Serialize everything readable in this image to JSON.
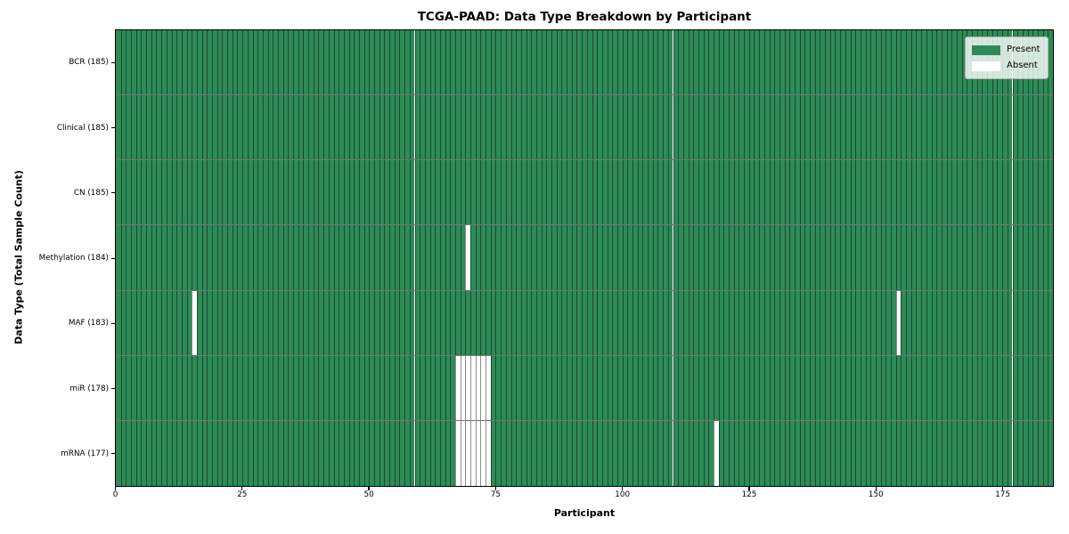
{
  "chart_data": {
    "type": "heatmap",
    "title": "TCGA-PAAD: Data Type Breakdown by Participant",
    "xlabel": "Participant",
    "ylabel": "Data Type (Total Sample Count)",
    "x_ticks": [
      0,
      25,
      50,
      75,
      100,
      125,
      150,
      175
    ],
    "x_range": [
      0,
      185
    ],
    "n_participants": 185,
    "grid": false,
    "legend_position": "upper right",
    "legend": [
      {
        "label": "Present",
        "color": "#2e8b57"
      },
      {
        "label": "Absent",
        "color": "#ffffff"
      }
    ],
    "colors": {
      "present": "#2e8b57",
      "absent": "#ffffff",
      "cell_edge": "rgba(0,0,0,0.45)",
      "row_separator": "rgba(0,0,0,0.55)"
    },
    "rows": [
      {
        "label": "BCR (185)",
        "data_type": "BCR",
        "total": 185,
        "absent_participants": []
      },
      {
        "label": "Clinical (185)",
        "data_type": "Clinical",
        "total": 185,
        "absent_participants": []
      },
      {
        "label": "CN (185)",
        "data_type": "CN",
        "total": 185,
        "absent_participants": []
      },
      {
        "label": "Methylation (184)",
        "data_type": "Methylation",
        "total": 184,
        "absent_participants": [
          69
        ]
      },
      {
        "label": "MAF (183)",
        "data_type": "MAF",
        "total": 183,
        "absent_participants": [
          15,
          154
        ]
      },
      {
        "label": "miR (178)",
        "data_type": "miR",
        "total": 178,
        "absent_participants": [
          67,
          68,
          69,
          70,
          71,
          72,
          73
        ]
      },
      {
        "label": "mRNA (177)",
        "data_type": "mRNA",
        "total": 177,
        "absent_participants": [
          67,
          68,
          69,
          70,
          71,
          72,
          73,
          118
        ]
      }
    ]
  }
}
